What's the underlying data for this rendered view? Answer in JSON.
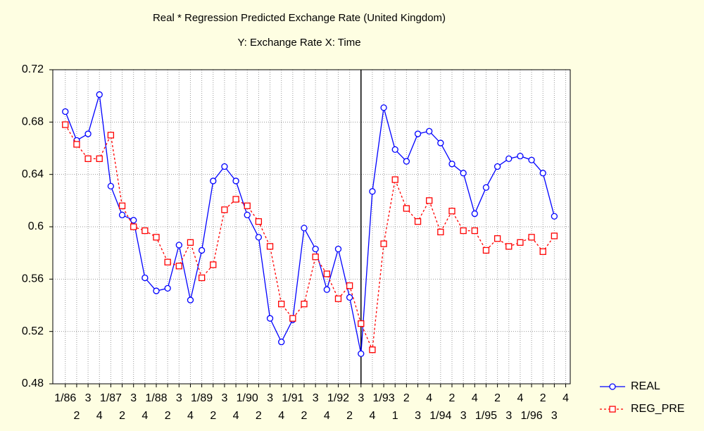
{
  "chart_data": {
    "type": "line",
    "title": "Real * Regression Predicted Exchange Rate (United Kingdom)",
    "subtitle": "Y: Exchange Rate X: Time",
    "categories": [
      "1/86",
      "2",
      "3",
      "4",
      "1/87",
      "2",
      "3",
      "4",
      "1/88",
      "2",
      "3",
      "4",
      "1/89",
      "2",
      "3",
      "4",
      "1/90",
      "2",
      "3",
      "4",
      "1/91",
      "2",
      "3",
      "4",
      "1/92",
      "2",
      "3",
      "4",
      "1/93",
      "1",
      "2",
      "3",
      "4",
      "1/94",
      "2",
      "3",
      "4",
      "1/95",
      "2",
      "3",
      "4",
      "1/96",
      "2",
      "3",
      "4"
    ],
    "series": [
      {
        "name": "REAL",
        "color": "#0000ff",
        "marker": "circle",
        "dashed": false,
        "values": [
          0.688,
          0.666,
          0.671,
          0.701,
          0.631,
          0.609,
          0.605,
          0.561,
          0.551,
          0.553,
          0.586,
          0.544,
          0.582,
          0.635,
          0.646,
          0.635,
          0.609,
          0.592,
          0.53,
          0.512,
          0.529,
          0.599,
          0.583,
          0.552,
          0.583,
          0.546,
          0.503,
          0.627,
          0.691,
          0.659,
          0.65,
          0.671,
          0.673,
          0.664,
          0.648,
          0.641,
          0.61,
          0.63,
          0.646,
          0.652,
          0.654,
          0.651,
          0.641,
          0.608,
          null
        ]
      },
      {
        "name": "REG_PRE",
        "color": "#ff0000",
        "marker": "square",
        "dashed": true,
        "values": [
          0.678,
          0.663,
          0.652,
          0.652,
          0.67,
          0.616,
          0.6,
          0.597,
          0.592,
          0.573,
          0.57,
          0.588,
          0.561,
          0.571,
          0.613,
          0.621,
          0.616,
          0.604,
          0.585,
          0.541,
          0.53,
          0.541,
          0.577,
          0.564,
          0.545,
          0.555,
          0.526,
          0.506,
          0.587,
          0.636,
          0.614,
          0.604,
          0.62,
          0.596,
          0.612,
          0.597,
          0.597,
          0.582,
          0.591,
          0.585,
          0.588,
          0.592,
          0.581,
          0.593,
          null
        ]
      }
    ],
    "ylim": [
      0.48,
      0.72
    ],
    "yticks": [
      0.48,
      0.52,
      0.56,
      {
        "value": 0.6,
        "label": "0.6"
      },
      0.64,
      0.68,
      0.72
    ],
    "grid": true,
    "reference_line_index": 26,
    "legend": "bottom-right"
  }
}
